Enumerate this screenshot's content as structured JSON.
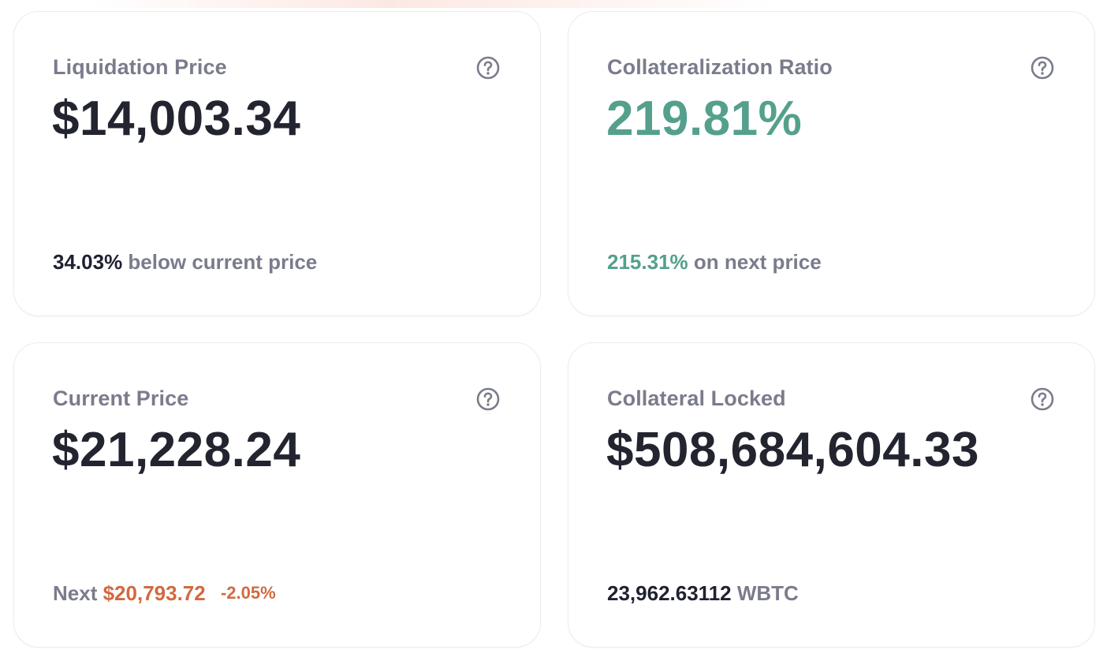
{
  "cards": [
    {
      "label": "Liquidation Price",
      "value": "$14,003.34",
      "footer_highlight": "34.03%",
      "footer_text": "below current price"
    },
    {
      "label": "Collateralization Ratio",
      "value": "219.81%",
      "footer_highlight": "215.31%",
      "footer_text": "on next price"
    },
    {
      "label": "Current Price",
      "value": "$21,228.24",
      "footer_prefix": "Next",
      "footer_highlight": "$20,793.72",
      "footer_change": "-2.05%"
    },
    {
      "label": "Collateral Locked",
      "value": "$508,684,604.33",
      "footer_highlight": "23,962.63112",
      "footer_text": "WBTC"
    }
  ],
  "colors": {
    "positive": "#54a08c",
    "negative": "#d2693f",
    "label": "#7a7c8c",
    "value": "#22242f"
  },
  "icons": {
    "help": "question-circle-icon"
  }
}
